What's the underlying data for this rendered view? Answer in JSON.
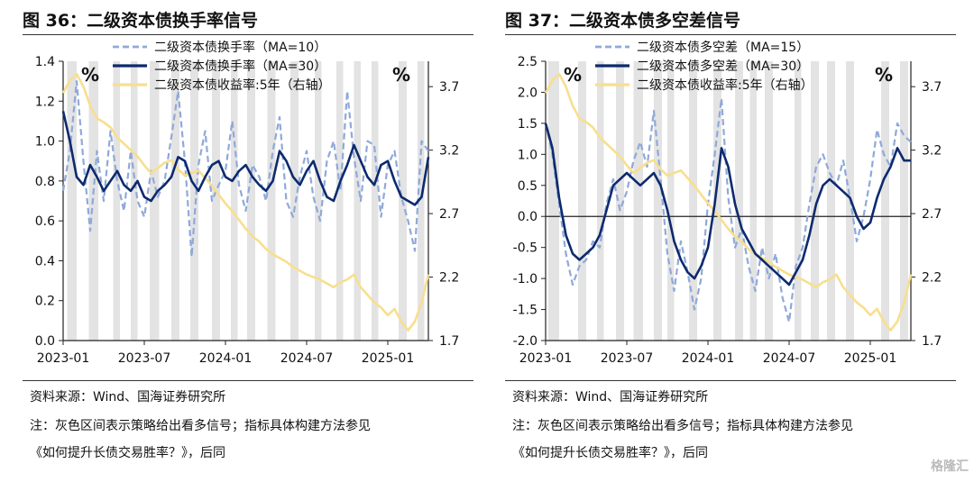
{
  "watermark": "格隆汇",
  "chart_data": [
    {
      "type": "line",
      "title": "图 36：二级资本债换手率信号",
      "left_unit": "%",
      "right_unit": "%",
      "ylim": [
        0,
        1.4
      ],
      "y_ticks": [
        0.0,
        0.2,
        0.4,
        0.6,
        0.8,
        1.0,
        1.2,
        1.4
      ],
      "y_tick_labels": [
        "0.0",
        "0.2",
        "0.4",
        "0.6",
        "0.8",
        "1.0",
        "1.2",
        "1.4"
      ],
      "y2lim": [
        1.7,
        3.9
      ],
      "y2_ticks": [
        1.7,
        2.2,
        2.7,
        3.2,
        3.7
      ],
      "y2_tick_labels": [
        "1.7",
        "2.2",
        "2.7",
        "3.2",
        "3.7"
      ],
      "xlim": [
        0,
        27
      ],
      "x_ticks": [
        0,
        6,
        12,
        18,
        24
      ],
      "x_tick_labels": [
        "2023-01",
        "2023-07",
        "2024-01",
        "2024-07",
        "2025-01"
      ],
      "zero_line": false,
      "shaded_months": [
        [
          0.3,
          1.0
        ],
        [
          1.9,
          2.6
        ],
        [
          3.7,
          4.2
        ],
        [
          5.0,
          5.5
        ],
        [
          6.4,
          7.1
        ],
        [
          8.0,
          8.6
        ],
        [
          9.4,
          10.0
        ],
        [
          11.0,
          11.6
        ],
        [
          12.4,
          12.9
        ],
        [
          13.6,
          14.2
        ],
        [
          15.1,
          15.7
        ],
        [
          16.8,
          17.4
        ],
        [
          18.6,
          19.1
        ],
        [
          20.2,
          20.7
        ],
        [
          21.5,
          22.0
        ],
        [
          22.8,
          23.3
        ],
        [
          24.8,
          25.4
        ],
        [
          26.2,
          26.7
        ]
      ],
      "series": [
        {
          "name": "二级资本债换手率（MA=10）",
          "axis": "left",
          "style": "dashed-light",
          "x": [
            0,
            0.5,
            1,
            1.5,
            2,
            2.5,
            3,
            3.5,
            4,
            4.5,
            5,
            5.5,
            6,
            6.5,
            7,
            7.5,
            8,
            8.5,
            9,
            9.5,
            10,
            10.5,
            11,
            11.5,
            12,
            12.5,
            13,
            13.5,
            14,
            14.5,
            15,
            15.5,
            16,
            16.5,
            17,
            17.5,
            18,
            18.5,
            19,
            19.5,
            20,
            20.5,
            21,
            21.5,
            22,
            22.5,
            23,
            23.5,
            24,
            24.5,
            25,
            25.5,
            26,
            26.5,
            27
          ],
          "values": [
            0.75,
            0.95,
            1.3,
            0.9,
            0.55,
            0.95,
            0.7,
            1.05,
            0.8,
            0.65,
            0.95,
            0.7,
            0.62,
            0.85,
            0.72,
            0.8,
            1.02,
            1.25,
            0.9,
            0.42,
            0.88,
            1.05,
            0.7,
            0.78,
            0.85,
            1.1,
            0.78,
            0.65,
            0.88,
            0.82,
            0.7,
            0.95,
            1.12,
            0.7,
            0.62,
            0.82,
            0.95,
            0.72,
            0.6,
            0.9,
            1.0,
            0.75,
            1.25,
            0.92,
            0.7,
            1.0,
            0.98,
            0.62,
            0.88,
            0.95,
            0.72,
            0.6,
            0.45,
            1.0,
            0.95
          ]
        },
        {
          "name": "二级资本债换手率（MA=30）",
          "axis": "left",
          "style": "solid-dark",
          "x": [
            0,
            0.5,
            1,
            1.5,
            2,
            2.5,
            3,
            3.5,
            4,
            4.5,
            5,
            5.5,
            6,
            6.5,
            7,
            7.5,
            8,
            8.5,
            9,
            9.5,
            10,
            10.5,
            11,
            11.5,
            12,
            12.5,
            13,
            13.5,
            14,
            14.5,
            15,
            15.5,
            16,
            16.5,
            17,
            17.5,
            18,
            18.5,
            19,
            19.5,
            20,
            20.5,
            21,
            21.5,
            22,
            22.5,
            23,
            23.5,
            24,
            24.5,
            25,
            25.5,
            26,
            26.5,
            27
          ],
          "values": [
            1.15,
            1.0,
            0.82,
            0.78,
            0.88,
            0.82,
            0.75,
            0.8,
            0.85,
            0.78,
            0.75,
            0.8,
            0.72,
            0.7,
            0.75,
            0.78,
            0.82,
            0.92,
            0.9,
            0.8,
            0.75,
            0.82,
            0.88,
            0.9,
            0.82,
            0.8,
            0.85,
            0.88,
            0.82,
            0.78,
            0.75,
            0.8,
            0.95,
            0.9,
            0.82,
            0.78,
            0.85,
            0.9,
            0.8,
            0.72,
            0.7,
            0.8,
            0.88,
            0.98,
            0.9,
            0.82,
            0.78,
            0.88,
            0.9,
            0.8,
            0.72,
            0.7,
            0.68,
            0.72,
            0.92
          ]
        },
        {
          "name": "二级资本债收益率:5年（右轴）",
          "axis": "right",
          "style": "solid-yellow",
          "x": [
            0,
            0.5,
            1,
            1.5,
            2,
            2.5,
            3,
            3.5,
            4,
            4.5,
            5,
            5.5,
            6,
            6.5,
            7,
            7.5,
            8,
            8.5,
            9,
            9.5,
            10,
            10.5,
            11,
            11.5,
            12,
            12.5,
            13,
            13.5,
            14,
            14.5,
            15,
            15.5,
            16,
            16.5,
            17,
            17.5,
            18,
            18.5,
            19,
            19.5,
            20,
            20.5,
            21,
            21.5,
            22,
            22.5,
            23,
            23.5,
            24,
            24.5,
            25,
            25.5,
            26,
            26.5,
            27
          ],
          "values": [
            3.65,
            3.75,
            3.8,
            3.7,
            3.55,
            3.45,
            3.42,
            3.38,
            3.3,
            3.25,
            3.2,
            3.15,
            3.08,
            3.02,
            3.06,
            3.1,
            3.12,
            3.05,
            3.0,
            3.02,
            3.04,
            2.98,
            2.92,
            2.85,
            2.78,
            2.72,
            2.65,
            2.58,
            2.52,
            2.48,
            2.42,
            2.38,
            2.35,
            2.32,
            2.28,
            2.25,
            2.22,
            2.2,
            2.18,
            2.15,
            2.12,
            2.16,
            2.18,
            2.22,
            2.12,
            2.06,
            2.0,
            1.96,
            1.9,
            1.95,
            1.85,
            1.78,
            1.85,
            2.0,
            2.22
          ]
        }
      ]
    },
    {
      "type": "line",
      "title": "图 37：二级资本债多空差信号",
      "left_unit": "%",
      "right_unit": "%",
      "ylim": [
        -2.0,
        2.5
      ],
      "y_ticks": [
        -2.0,
        -1.5,
        -1.0,
        -0.5,
        0.0,
        0.5,
        1.0,
        1.5,
        2.0,
        2.5
      ],
      "y_tick_labels": [
        "-2.0",
        "-1.5",
        "-1.0",
        "-0.5",
        "0.0",
        "0.5",
        "1.0",
        "1.5",
        "2.0",
        "2.5"
      ],
      "y2lim": [
        1.7,
        3.9
      ],
      "y2_ticks": [
        1.7,
        2.2,
        2.7,
        3.2,
        3.7
      ],
      "y2_tick_labels": [
        "1.7",
        "2.2",
        "2.7",
        "3.2",
        "3.7"
      ],
      "xlim": [
        0,
        27
      ],
      "x_ticks": [
        0,
        6,
        12,
        18,
        24
      ],
      "x_tick_labels": [
        "2023-01",
        "2023-07",
        "2024-01",
        "2024-07",
        "2025-01"
      ],
      "zero_line": true,
      "shaded_months": [
        [
          0.2,
          1.0
        ],
        [
          2.4,
          3.0
        ],
        [
          3.8,
          4.3
        ],
        [
          5.2,
          5.8
        ],
        [
          6.5,
          7.2
        ],
        [
          8.0,
          8.6
        ],
        [
          9.0,
          9.5
        ],
        [
          10.6,
          11.2
        ],
        [
          12.4,
          13.0
        ],
        [
          14.0,
          14.6
        ],
        [
          15.1,
          15.6
        ],
        [
          16.2,
          16.8
        ],
        [
          18.4,
          18.9
        ],
        [
          19.6,
          20.2
        ],
        [
          20.8,
          21.4
        ],
        [
          22.2,
          22.8
        ],
        [
          24.8,
          25.4
        ],
        [
          26.2,
          26.8
        ]
      ],
      "series": [
        {
          "name": "二级资本债多空差（MA=15）",
          "axis": "left",
          "style": "dashed-light",
          "x": [
            0,
            0.5,
            1,
            1.5,
            2,
            2.5,
            3,
            3.5,
            4,
            4.5,
            5,
            5.5,
            6,
            6.5,
            7,
            7.5,
            8,
            8.5,
            9,
            9.5,
            10,
            10.5,
            11,
            11.5,
            12,
            12.5,
            13,
            13.5,
            14,
            14.5,
            15,
            15.5,
            16,
            16.5,
            17,
            17.5,
            18,
            18.5,
            19,
            19.5,
            20,
            20.5,
            21,
            21.5,
            22,
            22.5,
            23,
            23.5,
            24,
            24.5,
            25,
            25.5,
            26,
            26.5,
            27
          ],
          "values": [
            1.5,
            1.0,
            0.2,
            -0.6,
            -1.1,
            -0.8,
            -0.7,
            -0.4,
            -0.5,
            0.2,
            0.6,
            0.1,
            0.4,
            0.9,
            1.2,
            0.8,
            1.7,
            0.6,
            -0.6,
            -1.2,
            -0.4,
            -0.9,
            -1.5,
            -1.0,
            0.2,
            1.0,
            1.9,
            0.3,
            -0.5,
            -0.2,
            -0.8,
            -1.2,
            -0.5,
            -1.0,
            -0.6,
            -1.3,
            -1.7,
            -0.8,
            -0.5,
            0.2,
            0.8,
            1.0,
            0.7,
            0.5,
            0.9,
            0.3,
            -0.4,
            0.0,
            0.6,
            1.4,
            1.0,
            0.8,
            1.5,
            1.3,
            1.2
          ]
        },
        {
          "name": "二级资本债多空差（MA=30）",
          "axis": "left",
          "style": "solid-dark",
          "x": [
            0,
            0.5,
            1,
            1.5,
            2,
            2.5,
            3,
            3.5,
            4,
            4.5,
            5,
            5.5,
            6,
            6.5,
            7,
            7.5,
            8,
            8.5,
            9,
            9.5,
            10,
            10.5,
            11,
            11.5,
            12,
            12.5,
            13,
            13.5,
            14,
            14.5,
            15,
            15.5,
            16,
            16.5,
            17,
            17.5,
            18,
            18.5,
            19,
            19.5,
            20,
            20.5,
            21,
            21.5,
            22,
            22.5,
            23,
            23.5,
            24,
            24.5,
            25,
            25.5,
            26,
            26.5,
            27
          ],
          "values": [
            1.5,
            1.1,
            0.3,
            -0.3,
            -0.6,
            -0.7,
            -0.6,
            -0.5,
            -0.3,
            0.1,
            0.5,
            0.6,
            0.7,
            0.6,
            0.5,
            0.6,
            0.7,
            0.5,
            0.1,
            -0.4,
            -0.7,
            -0.9,
            -1.0,
            -0.8,
            -0.5,
            0.2,
            1.1,
            0.8,
            0.2,
            -0.2,
            -0.4,
            -0.6,
            -0.7,
            -0.8,
            -0.9,
            -1.0,
            -1.1,
            -0.9,
            -0.7,
            -0.3,
            0.2,
            0.5,
            0.6,
            0.5,
            0.4,
            0.3,
            0.0,
            -0.2,
            -0.1,
            0.3,
            0.6,
            0.8,
            1.1,
            0.9,
            0.9
          ]
        },
        {
          "name": "二级资本债收益率:5年（右轴）",
          "axis": "right",
          "style": "solid-yellow",
          "x": [
            0,
            0.5,
            1,
            1.5,
            2,
            2.5,
            3,
            3.5,
            4,
            4.5,
            5,
            5.5,
            6,
            6.5,
            7,
            7.5,
            8,
            8.5,
            9,
            9.5,
            10,
            10.5,
            11,
            11.5,
            12,
            12.5,
            13,
            13.5,
            14,
            14.5,
            15,
            15.5,
            16,
            16.5,
            17,
            17.5,
            18,
            18.5,
            19,
            19.5,
            20,
            20.5,
            21,
            21.5,
            22,
            22.5,
            23,
            23.5,
            24,
            24.5,
            25,
            25.5,
            26,
            26.5,
            27
          ],
          "values": [
            3.65,
            3.75,
            3.8,
            3.7,
            3.55,
            3.45,
            3.42,
            3.38,
            3.3,
            3.25,
            3.2,
            3.15,
            3.08,
            3.02,
            3.06,
            3.1,
            3.12,
            3.05,
            3.0,
            3.02,
            3.04,
            2.98,
            2.92,
            2.85,
            2.78,
            2.72,
            2.65,
            2.58,
            2.52,
            2.48,
            2.42,
            2.38,
            2.35,
            2.32,
            2.28,
            2.25,
            2.22,
            2.2,
            2.18,
            2.15,
            2.12,
            2.16,
            2.18,
            2.22,
            2.12,
            2.06,
            2.0,
            1.96,
            1.9,
            1.95,
            1.85,
            1.78,
            1.85,
            2.0,
            2.22
          ]
        }
      ]
    }
  ],
  "colors": {
    "light_blue": "#8fa9d9",
    "dark_blue": "#0d2a6e",
    "yellow": "#f7df8e",
    "shade": "#e3e3e3"
  },
  "footers": [
    {
      "source": "资料来源：Wind、国海证券研究所",
      "note_line1": "注：灰色区间表示策略给出看多信号；指标具体构建方法参见",
      "note_line2": "《如何提升长债交易胜率？》，后同"
    },
    {
      "source": "资料来源：Wind、国海证券研究所",
      "note_line1": "注：灰色区间表示策略给出看多信号；指标具体构建方法参见",
      "note_line2": "《如何提升长债交易胜率？》，后同"
    }
  ]
}
